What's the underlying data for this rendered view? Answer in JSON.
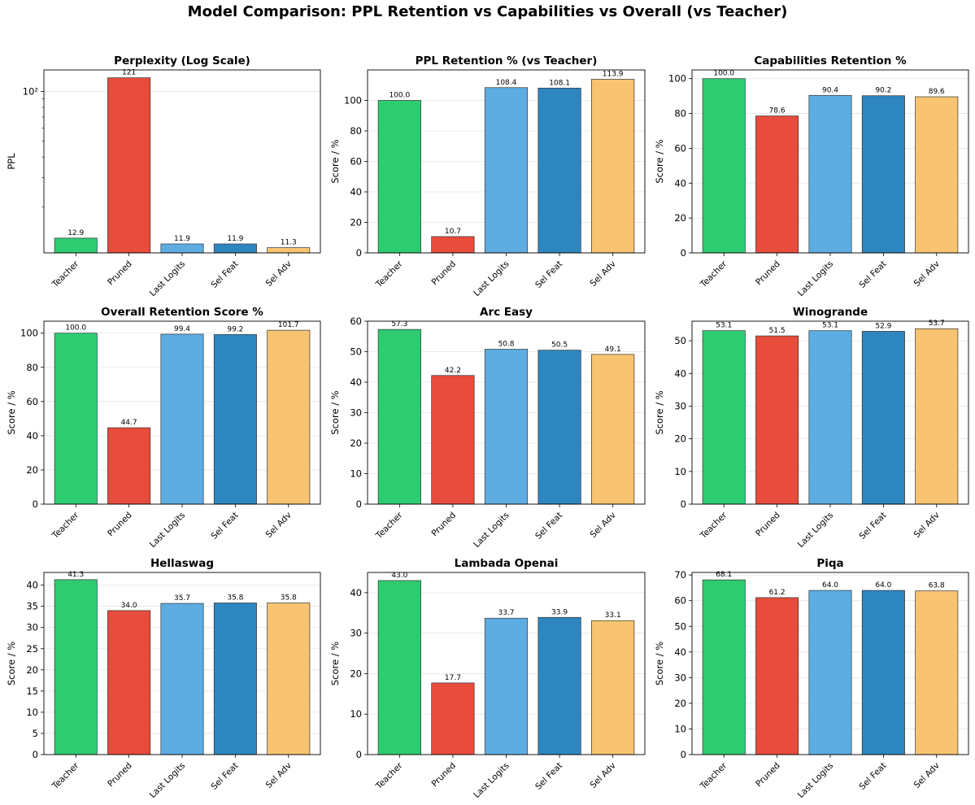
{
  "figure": {
    "title": "Model Comparison: PPL Retention vs Capabilities vs Overall (vs Teacher)"
  },
  "colors": [
    "#2ecc71",
    "#e74c3c",
    "#5dade2",
    "#2e86c1",
    "#f8c471"
  ],
  "chart_data": [
    {
      "type": "bar",
      "title": "Perplexity (Log Scale)",
      "ylabel": "PPL",
      "yscale": "log",
      "ylim": [
        10.5,
        135
      ],
      "yticks": [
        100
      ],
      "ytick_labels": [
        "10²"
      ],
      "categories": [
        "Teacher",
        "Pruned",
        "Last Logits",
        "Sel Feat",
        "Sel Adv"
      ],
      "values": [
        12.9,
        121,
        11.9,
        11.9,
        11.3
      ],
      "value_labels": [
        "12.9",
        "121",
        "11.9",
        "11.9",
        "11.3"
      ]
    },
    {
      "type": "bar",
      "title": "PPL Retention % (vs Teacher)",
      "ylabel": "Score / %",
      "ylim": [
        0,
        120
      ],
      "yticks": [
        0,
        20,
        40,
        60,
        80,
        100
      ],
      "categories": [
        "Teacher",
        "Pruned",
        "Last Logits",
        "Sel Feat",
        "Sel Adv"
      ],
      "values": [
        100.0,
        10.7,
        108.4,
        108.1,
        113.9
      ],
      "value_labels": [
        "100.0",
        "10.7",
        "108.4",
        "108.1",
        "113.9"
      ]
    },
    {
      "type": "bar",
      "title": "Capabilities Retention %",
      "ylabel": "Score / %",
      "ylim": [
        0,
        105
      ],
      "yticks": [
        0,
        20,
        40,
        60,
        80,
        100
      ],
      "categories": [
        "Teacher",
        "Pruned",
        "Last Logits",
        "Sel Feat",
        "Sel Adv"
      ],
      "values": [
        100.0,
        78.6,
        90.4,
        90.2,
        89.6
      ],
      "value_labels": [
        "100.0",
        "78.6",
        "90.4",
        "90.2",
        "89.6"
      ]
    },
    {
      "type": "bar",
      "title": "Overall Retention Score %",
      "ylabel": "Score / %",
      "ylim": [
        0,
        107
      ],
      "yticks": [
        0,
        20,
        40,
        60,
        80,
        100
      ],
      "categories": [
        "Teacher",
        "Pruned",
        "Last Logits",
        "Sel Feat",
        "Sel Adv"
      ],
      "values": [
        100.0,
        44.7,
        99.4,
        99.2,
        101.7
      ],
      "value_labels": [
        "100.0",
        "44.7",
        "99.4",
        "99.2",
        "101.7"
      ]
    },
    {
      "type": "bar",
      "title": "Arc Easy",
      "ylabel": "Score / %",
      "ylim": [
        0,
        60
      ],
      "yticks": [
        0,
        10,
        20,
        30,
        40,
        50,
        60
      ],
      "categories": [
        "Teacher",
        "Pruned",
        "Last Logits",
        "Sel Feat",
        "Sel Adv"
      ],
      "values": [
        57.3,
        42.2,
        50.8,
        50.5,
        49.1
      ],
      "value_labels": [
        "57.3",
        "42.2",
        "50.8",
        "50.5",
        "49.1"
      ]
    },
    {
      "type": "bar",
      "title": "Winogrande",
      "ylabel": "Score / %",
      "ylim": [
        0,
        56
      ],
      "yticks": [
        0,
        10,
        20,
        30,
        40,
        50
      ],
      "categories": [
        "Teacher",
        "Pruned",
        "Last Logits",
        "Sel Feat",
        "Sel Adv"
      ],
      "values": [
        53.1,
        51.5,
        53.1,
        52.9,
        53.7
      ],
      "value_labels": [
        "53.1",
        "51.5",
        "53.1",
        "52.9",
        "53.7"
      ]
    },
    {
      "type": "bar",
      "title": "Hellaswag",
      "ylabel": "Score / %",
      "ylim": [
        0,
        43
      ],
      "yticks": [
        0,
        5,
        10,
        15,
        20,
        25,
        30,
        35,
        40
      ],
      "categories": [
        "Teacher",
        "Pruned",
        "Last Logits",
        "Sel Feat",
        "Sel Adv"
      ],
      "values": [
        41.3,
        34.0,
        35.7,
        35.8,
        35.8
      ],
      "value_labels": [
        "41.3",
        "34.0",
        "35.7",
        "35.8",
        "35.8"
      ]
    },
    {
      "type": "bar",
      "title": "Lambada Openai",
      "ylabel": "Score / %",
      "ylim": [
        0,
        45
      ],
      "yticks": [
        0,
        10,
        20,
        30,
        40
      ],
      "categories": [
        "Teacher",
        "Pruned",
        "Last Logits",
        "Sel Feat",
        "Sel Adv"
      ],
      "values": [
        43.0,
        17.7,
        33.7,
        33.9,
        33.1
      ],
      "value_labels": [
        "43.0",
        "17.7",
        "33.7",
        "33.9",
        "33.1"
      ]
    },
    {
      "type": "bar",
      "title": "Piqa",
      "ylabel": "Score / %",
      "ylim": [
        0,
        71
      ],
      "yticks": [
        0,
        10,
        20,
        30,
        40,
        50,
        60,
        70
      ],
      "categories": [
        "Teacher",
        "Pruned",
        "Last Logits",
        "Sel Feat",
        "Sel Adv"
      ],
      "values": [
        68.1,
        61.2,
        64.0,
        64.0,
        63.8
      ],
      "value_labels": [
        "68.1",
        "61.2",
        "64.0",
        "64.0",
        "63.8"
      ]
    }
  ]
}
